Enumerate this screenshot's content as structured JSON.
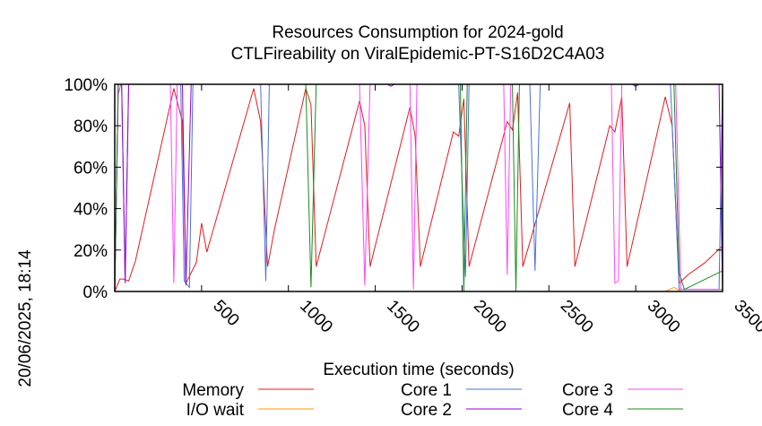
{
  "chart_data": {
    "type": "line",
    "title": "Resources Consumption for 2024-gold",
    "subtitle": "CTLFireability on ViralEpidemic-PT-S16D2C4A03",
    "xlabel": "Execution time (seconds)",
    "ylabel": "",
    "xlim": [
      0,
      3500
    ],
    "ylim": [
      0,
      100
    ],
    "x_ticks": [
      {
        "value": 500,
        "label": "500"
      },
      {
        "value": 1000,
        "label": "1000"
      },
      {
        "value": 1500,
        "label": "1500"
      },
      {
        "value": 2000,
        "label": "2000"
      },
      {
        "value": 2500,
        "label": "2500"
      },
      {
        "value": 3000,
        "label": "3000"
      },
      {
        "value": 3500,
        "label": "3500"
      }
    ],
    "y_ticks": [
      {
        "value": 0,
        "label": "0%"
      },
      {
        "value": 20,
        "label": "20%"
      },
      {
        "value": 40,
        "label": "40%"
      },
      {
        "value": 60,
        "label": "60%"
      },
      {
        "value": 80,
        "label": "80%"
      },
      {
        "value": 100,
        "label": "100%"
      }
    ],
    "timestamp": "20/06/2025, 18:14",
    "legend_position": "bottom",
    "series": [
      {
        "name": "Memory",
        "color": "#e41a1c",
        "points": [
          [
            0,
            0
          ],
          [
            30,
            6
          ],
          [
            50,
            6
          ],
          [
            80,
            5
          ],
          [
            120,
            15
          ],
          [
            340,
            98
          ],
          [
            390,
            82
          ],
          [
            410,
            4
          ],
          [
            470,
            14
          ],
          [
            500,
            33
          ],
          [
            530,
            19
          ],
          [
            800,
            98
          ],
          [
            840,
            82
          ],
          [
            880,
            12
          ],
          [
            920,
            30
          ],
          [
            1100,
            98
          ],
          [
            1130,
            90
          ],
          [
            1160,
            12
          ],
          [
            1410,
            92
          ],
          [
            1440,
            80
          ],
          [
            1470,
            12
          ],
          [
            1700,
            89
          ],
          [
            1730,
            75
          ],
          [
            1760,
            12
          ],
          [
            1950,
            77
          ],
          [
            1980,
            75
          ],
          [
            2010,
            93
          ],
          [
            2040,
            12
          ],
          [
            2260,
            82
          ],
          [
            2290,
            78
          ],
          [
            2320,
            96
          ],
          [
            2350,
            12
          ],
          [
            2620,
            91
          ],
          [
            2650,
            12
          ],
          [
            2850,
            80
          ],
          [
            2880,
            77
          ],
          [
            2920,
            94
          ],
          [
            2950,
            12
          ],
          [
            3170,
            94
          ],
          [
            3210,
            80
          ],
          [
            3250,
            4
          ],
          [
            3300,
            8
          ],
          [
            3400,
            14
          ],
          [
            3500,
            22
          ]
        ]
      },
      {
        "name": "I/O wait",
        "color": "#ff9900",
        "points": [
          [
            0,
            0
          ],
          [
            3170,
            0
          ],
          [
            3220,
            2
          ],
          [
            3260,
            0
          ],
          [
            3500,
            0
          ]
        ]
      },
      {
        "name": "Core 1",
        "color": "#4a6fdd",
        "points": [
          [
            0,
            0
          ],
          [
            20,
            100
          ],
          [
            40,
            100
          ],
          [
            60,
            5
          ],
          [
            80,
            100
          ],
          [
            380,
            100
          ],
          [
            400,
            5
          ],
          [
            430,
            2
          ],
          [
            450,
            100
          ],
          [
            840,
            100
          ],
          [
            870,
            5
          ],
          [
            890,
            100
          ],
          [
            1980,
            100
          ],
          [
            2020,
            7
          ],
          [
            2040,
            100
          ],
          [
            2390,
            100
          ],
          [
            2420,
            10
          ],
          [
            2450,
            100
          ],
          [
            3200,
            100
          ],
          [
            3250,
            1
          ],
          [
            3480,
            1
          ],
          [
            3500,
            100
          ]
        ]
      },
      {
        "name": "Core 2",
        "color": "#9400d3",
        "points": [
          [
            0,
            0
          ],
          [
            20,
            100
          ],
          [
            40,
            100
          ],
          [
            60,
            4
          ],
          [
            80,
            100
          ],
          [
            390,
            100
          ],
          [
            410,
            3
          ],
          [
            440,
            100
          ],
          [
            1570,
            100
          ],
          [
            1590,
            99
          ],
          [
            1610,
            100
          ],
          [
            2980,
            100
          ],
          [
            3000,
            99
          ],
          [
            3020,
            100
          ],
          [
            3480,
            100
          ],
          [
            3500,
            1
          ]
        ]
      },
      {
        "name": "Core 3",
        "color": "#ff44ff",
        "points": [
          [
            0,
            0
          ],
          [
            20,
            95
          ],
          [
            35,
            100
          ],
          [
            80,
            100
          ],
          [
            320,
            100
          ],
          [
            340,
            4
          ],
          [
            360,
            100
          ],
          [
            1410,
            100
          ],
          [
            1440,
            3
          ],
          [
            1470,
            100
          ],
          [
            1700,
            100
          ],
          [
            1720,
            1
          ],
          [
            1740,
            100
          ],
          [
            2240,
            100
          ],
          [
            2260,
            8
          ],
          [
            2280,
            100
          ],
          [
            2860,
            100
          ],
          [
            2880,
            4
          ],
          [
            2900,
            5
          ],
          [
            2920,
            100
          ],
          [
            3230,
            100
          ],
          [
            3260,
            1
          ],
          [
            3500,
            1
          ]
        ]
      },
      {
        "name": "Core 4",
        "color": "#1a8a1a",
        "points": [
          [
            0,
            0
          ],
          [
            20,
            100
          ],
          [
            1100,
            100
          ],
          [
            1130,
            2
          ],
          [
            1160,
            100
          ],
          [
            1990,
            100
          ],
          [
            2010,
            0
          ],
          [
            2030,
            100
          ],
          [
            2290,
            100
          ],
          [
            2310,
            0
          ],
          [
            2330,
            100
          ],
          [
            3220,
            100
          ],
          [
            3250,
            9
          ],
          [
            3280,
            1
          ],
          [
            3500,
            10
          ]
        ]
      }
    ]
  }
}
